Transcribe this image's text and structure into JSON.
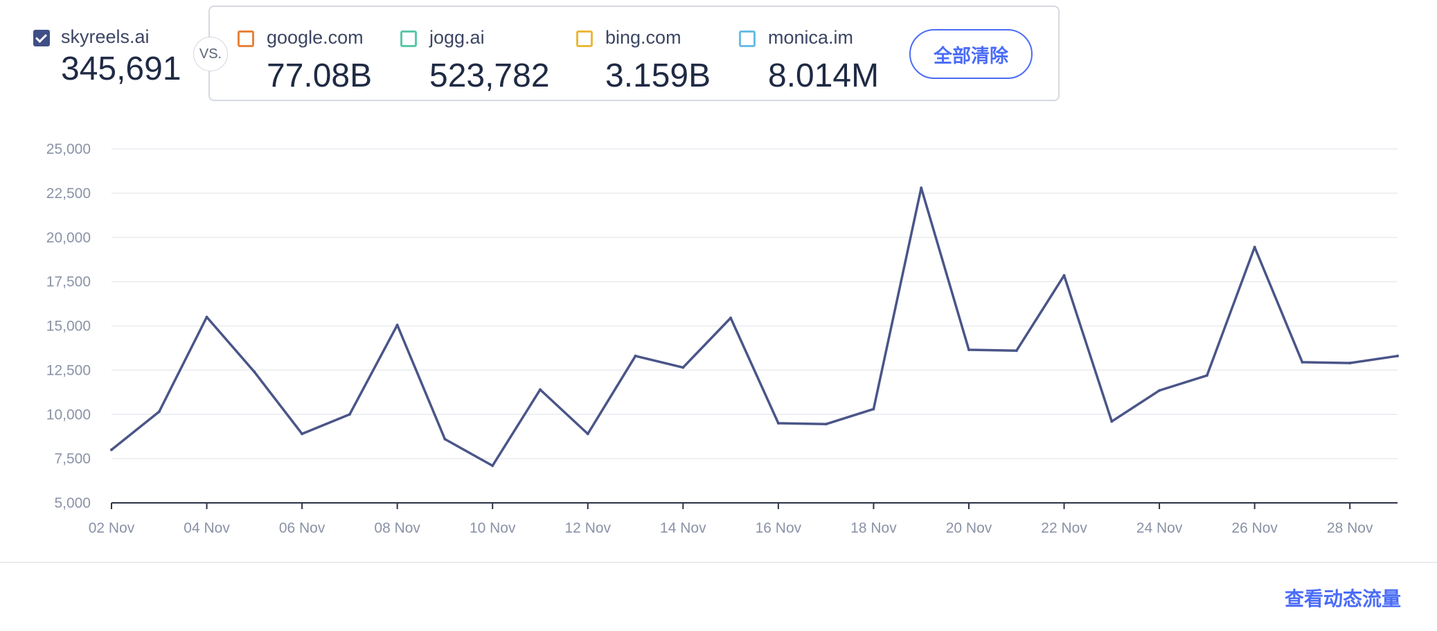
{
  "main_site": {
    "name": "skyreels.ai",
    "value": "345,691",
    "checked": true,
    "color": "#3f4f86"
  },
  "vs_label": "VS.",
  "competitors": [
    {
      "name": "google.com",
      "value": "77.08B",
      "color": "#e8833a"
    },
    {
      "name": "jogg.ai",
      "value": "523,782",
      "color": "#5cc8a8"
    },
    {
      "name": "bing.com",
      "value": "3.159B",
      "color": "#e9b93a"
    },
    {
      "name": "monica.im",
      "value": "8.014M",
      "color": "#6bbde3"
    }
  ],
  "clear_all_label": "全部清除",
  "footer_link": "查看动态流量",
  "chart_data": {
    "type": "line",
    "x": [
      "02 Nov",
      "03 Nov",
      "04 Nov",
      "05 Nov",
      "06 Nov",
      "07 Nov",
      "08 Nov",
      "09 Nov",
      "10 Nov",
      "11 Nov",
      "12 Nov",
      "13 Nov",
      "14 Nov",
      "15 Nov",
      "16 Nov",
      "17 Nov",
      "18 Nov",
      "19 Nov",
      "20 Nov",
      "21 Nov",
      "22 Nov",
      "23 Nov",
      "24 Nov",
      "25 Nov",
      "26 Nov",
      "27 Nov",
      "28 Nov",
      "29 Nov"
    ],
    "x_tick_labels": [
      "02 Nov",
      "04 Nov",
      "06 Nov",
      "08 Nov",
      "10 Nov",
      "12 Nov",
      "14 Nov",
      "16 Nov",
      "18 Nov",
      "20 Nov",
      "22 Nov",
      "24 Nov",
      "26 Nov",
      "28 Nov"
    ],
    "series": [
      {
        "name": "skyreels.ai",
        "color": "#4a5588",
        "values": [
          8000,
          10150,
          15500,
          12400,
          8900,
          10000,
          15050,
          8600,
          7100,
          11400,
          8900,
          13300,
          12650,
          15450,
          9500,
          9450,
          10300,
          22800,
          13650,
          13600,
          17850,
          9600,
          11350,
          12200,
          19450,
          12950,
          12900,
          13300
        ]
      }
    ],
    "y_ticks": [
      5000,
      7500,
      10000,
      12500,
      15000,
      17500,
      20000,
      22500,
      25000
    ],
    "y_tick_labels": [
      "5,000",
      "7,500",
      "10,000",
      "12,500",
      "15,000",
      "17,500",
      "20,000",
      "22,500",
      "25,000"
    ],
    "ylim": [
      5000,
      25000
    ],
    "grid": true,
    "legend": "none"
  }
}
